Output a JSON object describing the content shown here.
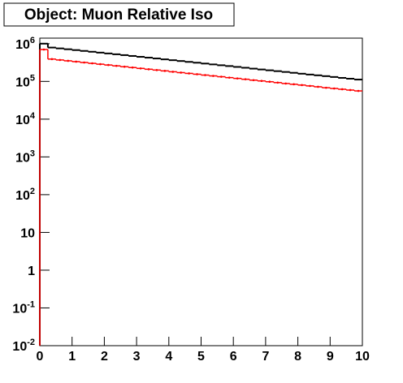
{
  "chart_data": {
    "type": "histogram",
    "title": "Object: Muon Relative Iso",
    "log_y": true,
    "xlim": [
      0,
      10
    ],
    "ylim": [
      0.01,
      1400000
    ],
    "xticks": [
      0,
      1,
      2,
      3,
      4,
      5,
      6,
      7,
      8,
      9,
      10
    ],
    "yticks": [
      {
        "value": 0.01,
        "label": "10",
        "sup": "-2"
      },
      {
        "value": 0.1,
        "label": "10",
        "sup": "-1"
      },
      1,
      10,
      {
        "value": 100,
        "label": "10",
        "sup": "2"
      },
      {
        "value": 1000,
        "label": "10",
        "sup": "3"
      },
      {
        "value": 10000,
        "label": "10",
        "sup": "4"
      },
      {
        "value": 100000,
        "label": "10",
        "sup": "5"
      },
      {
        "value": 1000000,
        "label": "10",
        "sup": "6"
      }
    ],
    "bins": [
      0,
      0.25,
      0.5,
      0.75,
      1,
      1.25,
      1.5,
      1.75,
      2,
      2.25,
      2.5,
      2.75,
      3,
      3.25,
      3.5,
      3.75,
      4,
      4.25,
      4.5,
      4.75,
      5,
      5.25,
      5.5,
      5.75,
      6,
      6.25,
      6.5,
      6.75,
      7,
      7.25,
      7.5,
      7.75,
      8,
      8.25,
      8.5,
      8.75,
      9,
      9.25,
      9.5,
      9.75,
      10
    ],
    "series": [
      {
        "color": "#000000",
        "values": [
          1000000,
          788000,
          749000,
          711000,
          676000,
          642000,
          610000,
          579000,
          550000,
          523000,
          497000,
          472000,
          448000,
          426000,
          405000,
          384000,
          365000,
          347000,
          329000,
          313000,
          297000,
          282000,
          268000,
          255000,
          242000,
          230000,
          218000,
          207000,
          197000,
          187000,
          178000,
          169000,
          160000,
          152000,
          145000,
          138000,
          131000,
          124000,
          118000,
          112000
        ]
      },
      {
        "color": "#ff0000",
        "values": [
          700000,
          390000,
          370000,
          351000,
          334000,
          317000,
          301000,
          286000,
          272000,
          258000,
          245000,
          233000,
          221000,
          210000,
          200000,
          190000,
          180000,
          171000,
          163000,
          155000,
          147000,
          140000,
          133000,
          126000,
          120000,
          114000,
          108000,
          103000,
          98000,
          93000,
          88000,
          84000,
          80000,
          76000,
          72000,
          68000,
          65000,
          62000,
          59000,
          56000
        ]
      }
    ]
  }
}
